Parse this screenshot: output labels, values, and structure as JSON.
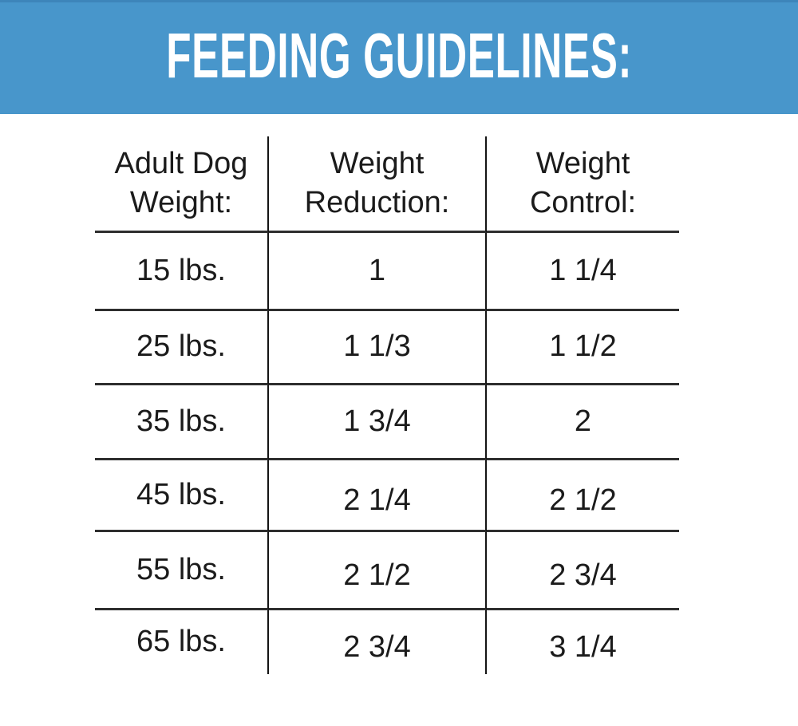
{
  "banner": {
    "title": "FEEDING GUIDELINES:",
    "bg_color": "#4896cb",
    "text_color": "#ffffff"
  },
  "table": {
    "header": [
      {
        "label": "Adult Dog Weight:",
        "line1": "Adult Dog",
        "line2": "Weight:"
      },
      {
        "label": "Weight Reduction:",
        "line1": "Weight",
        "line2": "Reduction:"
      },
      {
        "label": "Weight Control:",
        "line1": "Weight",
        "line2": "Control:"
      }
    ],
    "rows": [
      {
        "weight": "15 lbs.",
        "weight_reduction": "1",
        "weight_control": "1 1/4"
      },
      {
        "weight": "25 lbs.",
        "weight_reduction": "1 1/3",
        "weight_control": "1 1/2"
      },
      {
        "weight": "35 lbs.",
        "weight_reduction": "1 3/4",
        "weight_control": "2"
      },
      {
        "weight": "45 lbs.",
        "weight_reduction": "2 1/4",
        "weight_control": "2 1/2"
      },
      {
        "weight": "55 lbs.",
        "weight_reduction": "2 1/2",
        "weight_control": "2 3/4"
      },
      {
        "weight": "65 lbs.",
        "weight_reduction": "2 3/4",
        "weight_control": "3 1/4"
      }
    ]
  },
  "chart_data": {
    "type": "table",
    "title": "FEEDING GUIDELINES:",
    "columns": [
      "Adult Dog Weight:",
      "Weight Reduction:",
      "Weight Control:"
    ],
    "rows": [
      [
        "15 lbs.",
        "1",
        "1 1/4"
      ],
      [
        "25 lbs.",
        "1 1/3",
        "1 1/2"
      ],
      [
        "35 lbs.",
        "1 3/4",
        "2"
      ],
      [
        "45 lbs.",
        "2 1/4",
        "2 1/2"
      ],
      [
        "55 lbs.",
        "2 1/2",
        "2 3/4"
      ],
      [
        "65 lbs.",
        "2 3/4",
        "3 1/4"
      ]
    ]
  }
}
